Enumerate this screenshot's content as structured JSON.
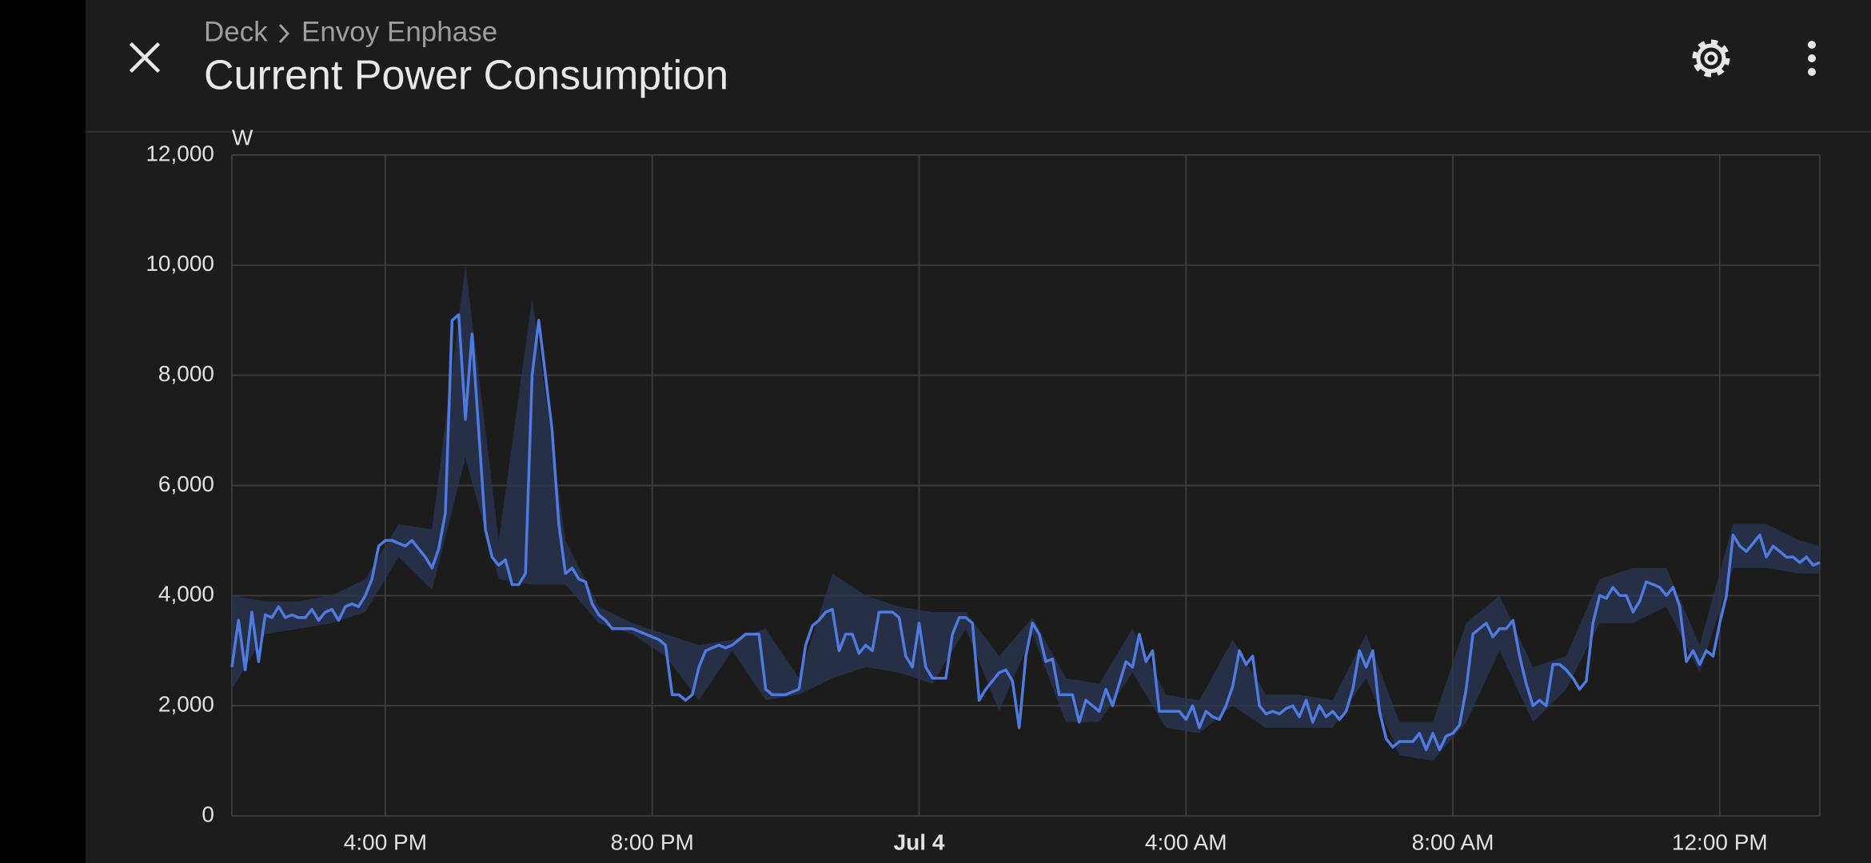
{
  "header": {
    "breadcrumb": [
      "Deck",
      "Envoy Enphase"
    ],
    "title": "Current Power Consumption"
  },
  "chart_data": {
    "type": "line",
    "y_unit": "W",
    "xlim": [
      13.7,
      37.5
    ],
    "xticks": [
      {
        "value": 16,
        "label": "4:00 PM"
      },
      {
        "value": 20,
        "label": "8:00 PM"
      },
      {
        "value": 24,
        "label": "Jul 4",
        "bold": true
      },
      {
        "value": 28,
        "label": "4:00 AM"
      },
      {
        "value": 32,
        "label": "8:00 AM"
      },
      {
        "value": 36,
        "label": "12:00 PM"
      }
    ],
    "ylim": [
      0,
      12000
    ],
    "yticks": [
      0,
      {
        "value": 2000,
        "label": "2,000"
      },
      {
        "value": 4000,
        "label": "4,000"
      },
      {
        "value": 6000,
        "label": "6,000"
      },
      {
        "value": 8000,
        "label": "8,000"
      },
      {
        "value": 10000,
        "label": "10,000"
      },
      {
        "value": 12000,
        "label": "12,000"
      }
    ],
    "grid": true,
    "x": [
      13.7,
      13.8,
      13.9,
      14,
      14.1,
      14.2,
      14.3,
      14.4,
      14.5,
      14.6,
      14.7,
      14.8,
      14.9,
      15,
      15.1,
      15.2,
      15.3,
      15.4,
      15.5,
      15.6,
      15.7,
      15.8,
      15.9,
      16,
      16.1,
      16.2,
      16.3,
      16.4,
      16.5,
      16.6,
      16.7,
      16.8,
      16.9,
      17,
      17.1,
      17.2,
      17.3,
      17.4,
      17.5,
      17.6,
      17.7,
      17.8,
      17.9,
      18,
      18.1,
      18.2,
      18.3,
      18.4,
      18.5,
      18.6,
      18.7,
      18.8,
      18.9,
      19,
      19.1,
      19.2,
      19.3,
      19.4,
      19.5,
      19.6,
      19.7,
      19.8,
      19.9,
      20,
      20.1,
      20.2,
      20.3,
      20.4,
      20.5,
      20.6,
      20.7,
      20.8,
      20.9,
      21,
      21.1,
      21.2,
      21.3,
      21.4,
      21.5,
      21.6,
      21.7,
      21.8,
      21.9,
      22,
      22.1,
      22.2,
      22.3,
      22.4,
      22.5,
      22.6,
      22.7,
      22.8,
      22.9,
      23,
      23.1,
      23.2,
      23.3,
      23.4,
      23.5,
      23.6,
      23.7,
      23.8,
      23.9,
      24,
      24.1,
      24.2,
      24.3,
      24.4,
      24.5,
      24.6,
      24.7,
      24.8,
      24.9,
      25,
      25.1,
      25.2,
      25.3,
      25.4,
      25.5,
      25.6,
      25.7,
      25.8,
      25.9,
      26,
      26.1,
      26.2,
      26.3,
      26.4,
      26.5,
      26.6,
      26.7,
      26.8,
      26.9,
      27,
      27.1,
      27.2,
      27.3,
      27.4,
      27.5,
      27.6,
      27.7,
      27.8,
      27.9,
      28,
      28.1,
      28.2,
      28.3,
      28.4,
      28.5,
      28.6,
      28.7,
      28.8,
      28.9,
      29,
      29.1,
      29.2,
      29.3,
      29.4,
      29.5,
      29.6,
      29.7,
      29.8,
      29.9,
      30,
      30.1,
      30.2,
      30.3,
      30.4,
      30.5,
      30.6,
      30.7,
      30.8,
      30.9,
      31,
      31.1,
      31.2,
      31.3,
      31.4,
      31.5,
      31.6,
      31.7,
      31.8,
      31.9,
      32,
      32.1,
      32.2,
      32.3,
      32.4,
      32.5,
      32.6,
      32.7,
      32.8,
      32.9,
      33,
      33.1,
      33.2,
      33.3,
      33.4,
      33.5,
      33.6,
      33.7,
      33.8,
      33.9,
      34,
      34.1,
      34.2,
      34.3,
      34.4,
      34.5,
      34.6,
      34.7,
      34.8,
      34.9,
      35,
      35.1,
      35.2,
      35.3,
      35.4,
      35.5,
      35.6,
      35.7,
      35.8,
      35.9,
      36,
      36.1,
      36.2,
      36.3,
      36.4,
      36.5,
      36.6,
      36.7,
      36.8,
      36.9,
      37,
      37.1,
      37.2,
      37.3,
      37.4,
      37.5
    ],
    "series": [
      {
        "color": "#4f7be0",
        "values": [
          2700,
          3550,
          2650,
          3700,
          2800,
          3650,
          3600,
          3800,
          3600,
          3650,
          3600,
          3600,
          3750,
          3550,
          3700,
          3750,
          3550,
          3800,
          3850,
          3800,
          4000,
          4300,
          4900,
          5000,
          5000,
          4950,
          4900,
          5000,
          4850,
          4700,
          4500,
          4850,
          5500,
          9000,
          9100,
          7200,
          8750,
          7000,
          5200,
          4700,
          4550,
          4650,
          4200,
          4200,
          4400,
          8000,
          9000,
          8000,
          7000,
          5300,
          4400,
          4500,
          4300,
          4250,
          3850,
          3650,
          3550,
          3400,
          3400,
          3400,
          3400,
          3350,
          3300,
          3250,
          3200,
          3100,
          2200,
          2200,
          2100,
          2200,
          2700,
          3000,
          3050,
          3100,
          3050,
          3100,
          3200,
          3300,
          3300,
          3300,
          2300,
          2200,
          2200,
          2200,
          2250,
          2300,
          3100,
          3450,
          3550,
          3700,
          3750,
          3000,
          3300,
          3300,
          2950,
          3100,
          3000,
          3700,
          3700,
          3700,
          3600,
          2900,
          2700,
          3500,
          2700,
          2500,
          2500,
          2500,
          3300,
          3600,
          3600,
          3500,
          2100,
          2300,
          2450,
          2600,
          2650,
          2450,
          1600,
          2900,
          3500,
          3300,
          2800,
          2850,
          2200,
          2200,
          2200,
          1700,
          2100,
          2000,
          1900,
          2300,
          2000,
          2400,
          2800,
          2700,
          3300,
          2800,
          3000,
          1900,
          1900,
          1900,
          1900,
          1750,
          2000,
          1600,
          1900,
          1800,
          1750,
          2000,
          2350,
          3000,
          2750,
          2900,
          2000,
          1850,
          1900,
          1850,
          1950,
          2000,
          1800,
          2100,
          1700,
          2000,
          1800,
          1900,
          1750,
          1900,
          2300,
          3000,
          2700,
          3000,
          1900,
          1400,
          1250,
          1350,
          1350,
          1350,
          1500,
          1200,
          1500,
          1200,
          1450,
          1500,
          1650,
          2300,
          3300,
          3400,
          3500,
          3250,
          3400,
          3400,
          3550,
          2900,
          2400,
          2000,
          2100,
          2000,
          2750,
          2750,
          2650,
          2500,
          2300,
          2450,
          3500,
          4000,
          3950,
          4150,
          4000,
          4000,
          3700,
          3900,
          4250,
          4200,
          4150,
          4000,
          4150,
          3800,
          2800,
          3000,
          2750,
          3000,
          2900,
          3500,
          4000,
          5100,
          4900,
          4800,
          4950,
          5100,
          4700,
          4900,
          4800,
          4700,
          4700,
          4600,
          4700,
          4550,
          4600
        ]
      }
    ],
    "band": {
      "color": "#2b3654",
      "x": [
        13.7,
        14.2,
        14.7,
        15.2,
        15.7,
        16.2,
        16.7,
        17.2,
        17.7,
        18.2,
        18.7,
        19.2,
        19.7,
        20.2,
        20.7,
        21.2,
        21.7,
        22.2,
        22.7,
        23.2,
        23.7,
        24.2,
        24.7,
        25.2,
        25.7,
        26.2,
        26.7,
        27.2,
        27.7,
        28.2,
        28.7,
        29.2,
        29.7,
        30.2,
        30.7,
        31.2,
        31.7,
        32.2,
        32.7,
        33.2,
        33.7,
        34.2,
        34.7,
        35.2,
        35.7,
        36.2,
        36.7,
        37.2,
        37.5
      ],
      "low": [
        2300,
        3300,
        3400,
        3500,
        3700,
        4700,
        4100,
        6500,
        4300,
        4200,
        4200,
        3500,
        3300,
        2900,
        2100,
        3000,
        2100,
        2200,
        2500,
        2700,
        2600,
        2400,
        3400,
        1900,
        3300,
        1700,
        1700,
        2600,
        1600,
        1500,
        2000,
        1600,
        1600,
        1600,
        2500,
        1100,
        1000,
        1700,
        3000,
        1700,
        2300,
        3500,
        3500,
        3800,
        2600,
        4500,
        4500,
        4400,
        4400
      ],
      "high": [
        4000,
        3900,
        3900,
        4000,
        4300,
        5300,
        5200,
        10000,
        5000,
        9400,
        5000,
        3800,
        3500,
        3300,
        3100,
        3200,
        3400,
        2500,
        4400,
        4000,
        3800,
        3700,
        3700,
        2900,
        3600,
        2500,
        2400,
        3400,
        2200,
        2100,
        3200,
        2200,
        2200,
        2100,
        3300,
        1700,
        1700,
        3500,
        4000,
        2700,
        2900,
        4300,
        4500,
        4500,
        3100,
        5300,
        5300,
        5000,
        4900
      ]
    }
  }
}
